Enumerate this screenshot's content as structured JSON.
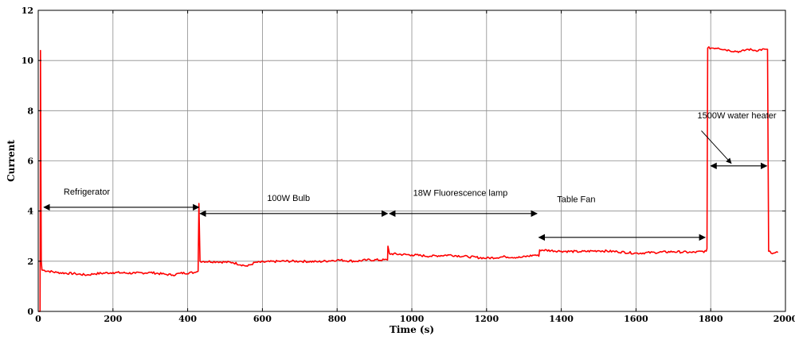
{
  "chart_data": {
    "type": "line",
    "xlabel": "Time (s)",
    "ylabel": "Current",
    "xlim": [
      0,
      2000
    ],
    "ylim": [
      0,
      12
    ],
    "xticks": [
      0,
      200,
      400,
      600,
      800,
      1000,
      1200,
      1400,
      1600,
      1800,
      2000
    ],
    "yticks": [
      0,
      2,
      4,
      6,
      8,
      10,
      12
    ],
    "grid": true,
    "line_color": "#ff0000",
    "series": [
      {
        "points": [
          [
            0,
            0
          ],
          [
            5,
            0
          ],
          [
            6,
            10.4
          ],
          [
            8,
            2.0
          ],
          [
            10,
            1.65
          ],
          [
            50,
            1.55
          ],
          [
            100,
            1.5
          ],
          [
            130,
            1.45
          ],
          [
            150,
            1.5
          ],
          [
            200,
            1.55
          ],
          [
            260,
            1.52
          ],
          [
            300,
            1.55
          ],
          [
            340,
            1.48
          ],
          [
            360,
            1.45
          ],
          [
            380,
            1.52
          ],
          [
            420,
            1.55
          ],
          [
            428,
            1.6
          ],
          [
            430,
            4.3
          ],
          [
            433,
            2.0
          ],
          [
            480,
            1.98
          ],
          [
            520,
            1.95
          ],
          [
            560,
            1.8
          ],
          [
            580,
            1.95
          ],
          [
            650,
            2.0
          ],
          [
            700,
            2.0
          ],
          [
            750,
            1.98
          ],
          [
            800,
            2.05
          ],
          [
            850,
            2.0
          ],
          [
            880,
            2.05
          ],
          [
            935,
            2.05
          ],
          [
            936,
            2.6
          ],
          [
            940,
            2.3
          ],
          [
            1000,
            2.25
          ],
          [
            1050,
            2.2
          ],
          [
            1100,
            2.25
          ],
          [
            1150,
            2.18
          ],
          [
            1200,
            2.12
          ],
          [
            1250,
            2.18
          ],
          [
            1290,
            2.15
          ],
          [
            1330,
            2.25
          ],
          [
            1340,
            2.2
          ],
          [
            1342,
            2.45
          ],
          [
            1400,
            2.4
          ],
          [
            1450,
            2.38
          ],
          [
            1500,
            2.42
          ],
          [
            1550,
            2.38
          ],
          [
            1600,
            2.32
          ],
          [
            1650,
            2.35
          ],
          [
            1700,
            2.38
          ],
          [
            1750,
            2.35
          ],
          [
            1788,
            2.4
          ],
          [
            1790,
            2.5
          ],
          [
            1792,
            10.5
          ],
          [
            1820,
            10.5
          ],
          [
            1850,
            10.4
          ],
          [
            1880,
            10.35
          ],
          [
            1900,
            10.45
          ],
          [
            1920,
            10.4
          ],
          [
            1945,
            10.45
          ],
          [
            1952,
            10.45
          ],
          [
            1955,
            2.4
          ],
          [
            1965,
            2.3
          ],
          [
            1980,
            2.35
          ]
        ]
      }
    ],
    "annotations": [
      {
        "text": "Refrigerator",
        "label_x": 130,
        "label_y": 4.65,
        "arrow_from": [
          15,
          4.15
        ],
        "arrow_to": [
          430,
          4.15
        ]
      },
      {
        "text": "100W Bulb",
        "label_x": 670,
        "label_y": 4.4,
        "arrow_from": [
          433,
          3.9
        ],
        "arrow_to": [
          935,
          3.9
        ]
      },
      {
        "text": "18W Fluorescence lamp",
        "label_x": 1130,
        "label_y": 4.6,
        "arrow_from": [
          940,
          3.9
        ],
        "arrow_to": [
          1335,
          3.9
        ]
      },
      {
        "text": "Table Fan",
        "label_x": 1440,
        "label_y": 4.35,
        "arrow_from": [
          1340,
          2.95
        ],
        "arrow_to": [
          1785,
          2.95
        ]
      },
      {
        "text": "1500W water heater",
        "label_x": 1870,
        "label_y": 7.7,
        "arrow_from": [
          1800,
          5.8
        ],
        "arrow_to": [
          1950,
          5.8
        ],
        "pointer_from": [
          1775,
          7.2
        ],
        "pointer_to": [
          1855,
          5.9
        ]
      }
    ]
  }
}
